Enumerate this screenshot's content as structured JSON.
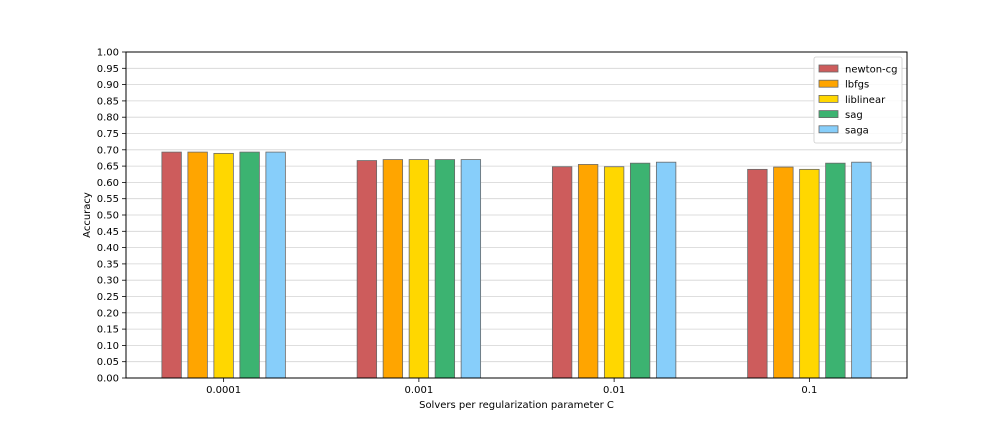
{
  "chart_data": {
    "type": "bar",
    "title": "",
    "xlabel": "Solvers per regularization parameter C",
    "ylabel": "Accuracy",
    "ylim": [
      0.0,
      1.0
    ],
    "yticks": [
      "0.00",
      "0.05",
      "0.10",
      "0.15",
      "0.20",
      "0.25",
      "0.30",
      "0.35",
      "0.40",
      "0.45",
      "0.50",
      "0.55",
      "0.60",
      "0.65",
      "0.70",
      "0.75",
      "0.80",
      "0.85",
      "0.90",
      "0.95",
      "1.00"
    ],
    "categories": [
      "0.0001",
      "0.001",
      "0.01",
      "0.1"
    ],
    "grid": "horizontal",
    "legend_position": "top-right",
    "series": [
      {
        "name": "newton-cg",
        "color": "#cd5c5c",
        "values": [
          0.693,
          0.667,
          0.648,
          0.64
        ]
      },
      {
        "name": "lbfgs",
        "color": "#ffa500",
        "values": [
          0.693,
          0.67,
          0.655,
          0.647
        ]
      },
      {
        "name": "liblinear",
        "color": "#ffd700",
        "values": [
          0.689,
          0.67,
          0.648,
          0.64
        ]
      },
      {
        "name": "sag",
        "color": "#3cb371",
        "values": [
          0.693,
          0.67,
          0.659,
          0.659
        ]
      },
      {
        "name": "saga",
        "color": "#87cefa",
        "values": [
          0.693,
          0.67,
          0.662,
          0.662
        ]
      }
    ]
  }
}
